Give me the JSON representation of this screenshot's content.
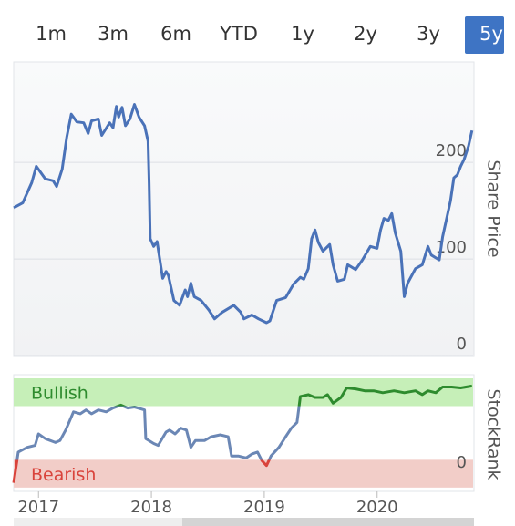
{
  "range_buttons": [
    {
      "label": "1m"
    },
    {
      "label": "3m"
    },
    {
      "label": "6m"
    },
    {
      "label": "YTD"
    },
    {
      "label": "1y"
    },
    {
      "label": "2y"
    },
    {
      "label": "3y"
    },
    {
      "label": "5y",
      "selected": true
    }
  ],
  "chart_data": [
    {
      "type": "line",
      "y_axis_title": "Share Price",
      "color": "#4a72b8",
      "x": [
        2016.78,
        2016.86,
        2016.94,
        2016.98,
        2017.06,
        2017.13,
        2017.16,
        2017.21,
        2017.25,
        2017.29,
        2017.34,
        2017.4,
        2017.44,
        2017.47,
        2017.53,
        2017.56,
        2017.63,
        2017.66,
        2017.69,
        2017.71,
        2017.74,
        2017.77,
        2017.81,
        2017.85,
        2017.89,
        2017.94,
        2017.97,
        2017.98,
        2017.99,
        2018.02,
        2018.05,
        2018.1,
        2018.13,
        2018.15,
        2018.2,
        2018.25,
        2018.3,
        2018.32,
        2018.35,
        2018.38,
        2018.44,
        2018.51,
        2018.56,
        2018.63,
        2018.73,
        2018.79,
        2018.82,
        2018.89,
        2018.95,
        2019.02,
        2019.05,
        2019.11,
        2019.19,
        2019.26,
        2019.32,
        2019.35,
        2019.39,
        2019.42,
        2019.45,
        2019.48,
        2019.52,
        2019.58,
        2019.61,
        2019.65,
        2019.71,
        2019.74,
        2019.81,
        2019.87,
        2019.94,
        2020.0,
        2020.03,
        2020.06,
        2020.1,
        2020.13,
        2020.16,
        2020.21,
        2020.24,
        2020.27,
        2020.34,
        2020.4,
        2020.45,
        2020.48,
        2020.55,
        2020.58,
        2020.65,
        2020.68,
        2020.71,
        2020.74,
        2020.77,
        2020.81,
        2020.84
      ],
      "values": [
        153,
        158,
        179,
        196,
        183,
        181,
        175,
        193,
        226,
        250,
        242,
        241,
        230,
        243,
        245,
        228,
        241,
        236,
        258,
        247,
        257,
        238,
        245,
        260,
        247,
        238,
        222,
        179,
        121,
        113,
        118,
        80,
        87,
        83,
        57,
        52,
        68,
        61,
        75,
        61,
        57,
        47,
        38,
        45,
        52,
        45,
        38,
        42,
        38,
        34,
        36,
        57,
        60,
        74,
        81,
        79,
        90,
        121,
        130,
        117,
        108,
        115,
        94,
        77,
        79,
        94,
        89,
        99,
        113,
        111,
        130,
        142,
        140,
        147,
        127,
        108,
        61,
        75,
        90,
        94,
        113,
        104,
        99,
        123,
        160,
        184,
        187,
        196,
        203,
        217,
        233
      ],
      "xlim": [
        2016.78,
        2020.85
      ],
      "ylim": [
        0,
        304
      ],
      "yticks": [
        0,
        100,
        200
      ],
      "grid": true
    },
    {
      "type": "rank",
      "y_axis_title": "StockRank",
      "color": "#6b87b5",
      "bands": [
        {
          "label": "Bullish",
          "from": 71,
          "to": 100,
          "color": "#c6efb8",
          "line_color": "#2e8b2e"
        },
        {
          "label": "Bearish",
          "from": -14,
          "to": 15,
          "color": "#f2cdc8",
          "line_color": "#d9433b"
        }
      ],
      "x": [
        2016.78,
        2016.82,
        2016.9,
        2016.97,
        2017.0,
        2017.06,
        2017.15,
        2017.19,
        2017.24,
        2017.27,
        2017.31,
        2017.37,
        2017.42,
        2017.47,
        2017.53,
        2017.6,
        2017.66,
        2017.73,
        2017.79,
        2017.85,
        2017.94,
        2017.95,
        2018.02,
        2018.06,
        2018.13,
        2018.16,
        2018.21,
        2018.26,
        2018.31,
        2018.35,
        2018.39,
        2018.47,
        2018.53,
        2018.61,
        2018.68,
        2018.71,
        2018.77,
        2018.84,
        2018.89,
        2018.94,
        2018.98,
        2019.02,
        2019.06,
        2019.13,
        2019.19,
        2019.24,
        2019.29,
        2019.32,
        2019.39,
        2019.45,
        2019.52,
        2019.56,
        2019.61,
        2019.68,
        2019.73,
        2019.81,
        2019.89,
        2019.97,
        2020.05,
        2020.15,
        2020.24,
        2020.34,
        2020.4,
        2020.45,
        2020.52,
        2020.58,
        2020.66,
        2020.74,
        2020.84
      ],
      "values": [
        -9,
        23,
        28,
        30,
        42,
        37,
        33,
        35,
        46,
        54,
        65,
        63,
        67,
        63,
        67,
        65,
        69,
        72,
        69,
        70,
        67,
        37,
        32,
        30,
        44,
        46,
        42,
        48,
        46,
        28,
        35,
        35,
        39,
        41,
        39,
        19,
        19,
        17,
        21,
        23,
        14,
        9,
        19,
        28,
        39,
        48,
        54,
        81,
        83,
        80,
        80,
        83,
        74,
        80,
        90,
        89,
        87,
        87,
        85,
        87,
        85,
        87,
        83,
        87,
        85,
        91,
        91,
        90,
        92
      ],
      "xlim": [
        2016.78,
        2020.85
      ],
      "ylim": [
        -17,
        100
      ],
      "yticks": [
        0
      ],
      "xticks": [
        2017,
        2018,
        2019,
        2020
      ]
    }
  ]
}
